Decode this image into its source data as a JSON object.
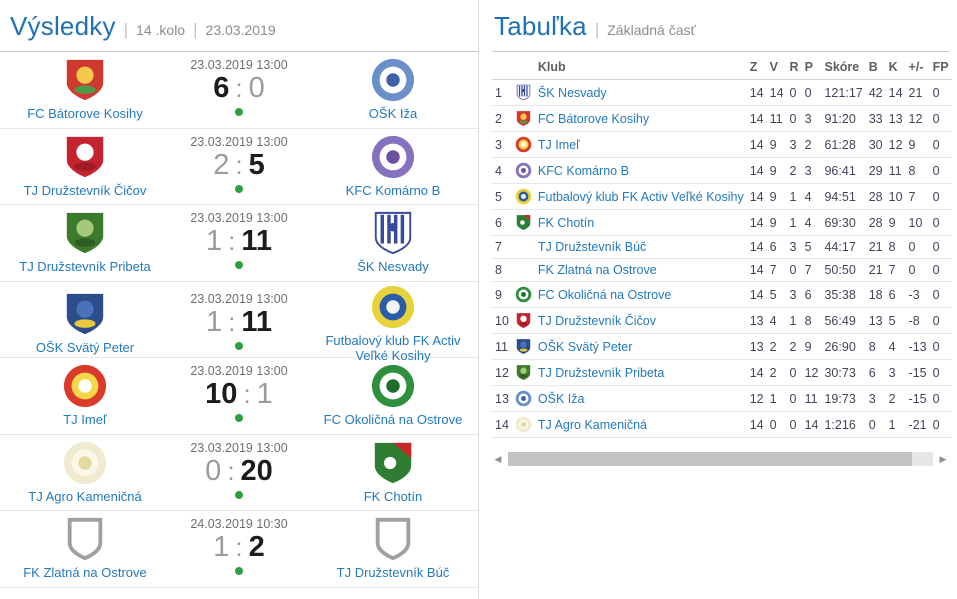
{
  "results": {
    "title": "Výsledky",
    "round": "14 .kolo",
    "date": "23.03.2019",
    "separator": "|",
    "score_separator": ":",
    "matches": [
      {
        "datetime": "23.03.2019 13:00",
        "home": {
          "name": "FC Bátorove Kosihy",
          "logo": "batorove-kosihy"
        },
        "away": {
          "name": "OŠK Iža",
          "logo": "iza"
        },
        "score": {
          "home": "6",
          "away": "0"
        }
      },
      {
        "datetime": "23.03.2019 13:00",
        "home": {
          "name": "TJ Družstevník Čičov",
          "logo": "cicov"
        },
        "away": {
          "name": "KFC Komárno B",
          "logo": "komarno-b"
        },
        "score": {
          "home": "2",
          "away": "5"
        }
      },
      {
        "datetime": "23.03.2019 13:00",
        "home": {
          "name": "TJ Družstevník Pribeta",
          "logo": "pribeta"
        },
        "away": {
          "name": "ŠK Nesvady",
          "logo": "nesvady"
        },
        "score": {
          "home": "1",
          "away": "11"
        }
      },
      {
        "datetime": "23.03.2019 13:00",
        "home": {
          "name": "OŠK Svätý Peter",
          "logo": "svaty-peter"
        },
        "away": {
          "name": "Futbalový klub FK Activ Veľké Kosihy",
          "logo": "activ-velke-kosihy"
        },
        "score": {
          "home": "1",
          "away": "11"
        }
      },
      {
        "datetime": "23.03.2019 13:00",
        "home": {
          "name": "TJ Imeľ",
          "logo": "imel"
        },
        "away": {
          "name": "FC Okoličná na Ostrove",
          "logo": "okolicna"
        },
        "score": {
          "home": "10",
          "away": "1"
        }
      },
      {
        "datetime": "23.03.2019 13:00",
        "home": {
          "name": "TJ Agro Kameničná",
          "logo": "agro-kamenicna"
        },
        "away": {
          "name": "FK Chotín",
          "logo": "chotin"
        },
        "score": {
          "home": "0",
          "away": "20"
        }
      },
      {
        "datetime": "24.03.2019 10:30",
        "home": {
          "name": "FK Zlatná na Ostrove",
          "logo": "placeholder-shield"
        },
        "away": {
          "name": "TJ Družstevník Búč",
          "logo": "placeholder-shield"
        },
        "score": {
          "home": "1",
          "away": "2"
        }
      }
    ]
  },
  "table": {
    "title": "Tabuľka",
    "subtitle": "Základná časť",
    "separator": "|",
    "columns": [
      "Klub",
      "Z",
      "V",
      "R",
      "P",
      "Skóre",
      "B",
      "K",
      "+/-",
      "FP"
    ],
    "rows": [
      {
        "pos": "1",
        "club": "ŠK Nesvady",
        "logo": "nesvady",
        "z": "14",
        "v": "14",
        "r": "0",
        "p": "0",
        "skore": "121:17",
        "b": "42",
        "k": "14",
        "pm": "21",
        "fp": "0"
      },
      {
        "pos": "2",
        "club": "FC Bátorove Kosihy",
        "logo": "batorove-kosihy",
        "z": "14",
        "v": "11",
        "r": "0",
        "p": "3",
        "skore": "91:20",
        "b": "33",
        "k": "13",
        "pm": "12",
        "fp": "0"
      },
      {
        "pos": "3",
        "club": "TJ Imeľ",
        "logo": "imel",
        "z": "14",
        "v": "9",
        "r": "3",
        "p": "2",
        "skore": "61:28",
        "b": "30",
        "k": "12",
        "pm": "9",
        "fp": "0"
      },
      {
        "pos": "4",
        "club": "KFC Komárno B",
        "logo": "komarno-b",
        "z": "14",
        "v": "9",
        "r": "2",
        "p": "3",
        "skore": "96:41",
        "b": "29",
        "k": "11",
        "pm": "8",
        "fp": "0"
      },
      {
        "pos": "5",
        "club": "Futbalový klub FK Activ Veľké Kosihy",
        "logo": "activ-velke-kosihy",
        "z": "14",
        "v": "9",
        "r": "1",
        "p": "4",
        "skore": "94:51",
        "b": "28",
        "k": "10",
        "pm": "7",
        "fp": "0"
      },
      {
        "pos": "6",
        "club": "FK Chotín",
        "logo": "chotin",
        "z": "14",
        "v": "9",
        "r": "1",
        "p": "4",
        "skore": "69:30",
        "b": "28",
        "k": "9",
        "pm": "10",
        "fp": "0"
      },
      {
        "pos": "7",
        "club": "TJ Družstevník Búč",
        "logo": "",
        "z": "14",
        "v": "6",
        "r": "3",
        "p": "5",
        "skore": "44:17",
        "b": "21",
        "k": "8",
        "pm": "0",
        "fp": "0"
      },
      {
        "pos": "8",
        "club": "FK Zlatná na Ostrove",
        "logo": "",
        "z": "14",
        "v": "7",
        "r": "0",
        "p": "7",
        "skore": "50:50",
        "b": "21",
        "k": "7",
        "pm": "0",
        "fp": "0"
      },
      {
        "pos": "9",
        "club": "FC Okoličná na Ostrove",
        "logo": "okolicna",
        "z": "14",
        "v": "5",
        "r": "3",
        "p": "6",
        "skore": "35:38",
        "b": "18",
        "k": "6",
        "pm": "-3",
        "fp": "0"
      },
      {
        "pos": "10",
        "club": "TJ Družstevník Čičov",
        "logo": "cicov",
        "z": "13",
        "v": "4",
        "r": "1",
        "p": "8",
        "skore": "56:49",
        "b": "13",
        "k": "5",
        "pm": "-8",
        "fp": "0"
      },
      {
        "pos": "11",
        "club": "OŠK Svätý Peter",
        "logo": "svaty-peter",
        "z": "13",
        "v": "2",
        "r": "2",
        "p": "9",
        "skore": "26:90",
        "b": "8",
        "k": "4",
        "pm": "-13",
        "fp": "0"
      },
      {
        "pos": "12",
        "club": "TJ Družstevník Pribeta",
        "logo": "pribeta",
        "z": "14",
        "v": "2",
        "r": "0",
        "p": "12",
        "skore": "30:73",
        "b": "6",
        "k": "3",
        "pm": "-15",
        "fp": "0"
      },
      {
        "pos": "13",
        "club": "OŠK Iža",
        "logo": "iza",
        "z": "12",
        "v": "1",
        "r": "0",
        "p": "11",
        "skore": "19:73",
        "b": "3",
        "k": "2",
        "pm": "-15",
        "fp": "0"
      },
      {
        "pos": "14",
        "club": "TJ Agro Kameničná",
        "logo": "agro-kamenicna",
        "z": "14",
        "v": "0",
        "r": "0",
        "p": "14",
        "skore": "1:216",
        "b": "0",
        "k": "1",
        "pm": "-21",
        "fp": "0"
      }
    ],
    "scrollbar": {
      "left_arrow": "◀",
      "right_arrow": "▶"
    }
  },
  "logos": {
    "batorove-kosihy": {
      "shape": "shield",
      "colors": [
        "#d03a2e",
        "#f2c94c",
        "#4c9a48"
      ]
    },
    "iza": {
      "shape": "circle",
      "colors": [
        "#6b8fc9",
        "#ffffff",
        "#3f5fa8"
      ]
    },
    "cicov": {
      "shape": "shield",
      "colors": [
        "#c32430",
        "#ffffff",
        "#9e1c26"
      ]
    },
    "komarno-b": {
      "shape": "circle",
      "colors": [
        "#8571bd",
        "#ffffff",
        "#6a4fa3"
      ]
    },
    "pribeta": {
      "shape": "shield",
      "colors": [
        "#3c7a2e",
        "#a6c87a",
        "#2c5e22"
      ]
    },
    "nesvady": {
      "shape": "stripes",
      "colors": [
        "#ffffff",
        "#39499c",
        "#39499c"
      ]
    },
    "svaty-peter": {
      "shape": "shield",
      "colors": [
        "#2b4d8c",
        "#4a72b8",
        "#e8c83c"
      ]
    },
    "activ-velke-kosihy": {
      "shape": "circle",
      "colors": [
        "#e8d23c",
        "#2b5ca8",
        "#f5f5f5"
      ]
    },
    "imel": {
      "shape": "circle",
      "colors": [
        "#d93a2b",
        "#f5d54a",
        "#ffffff"
      ]
    },
    "okolicna": {
      "shape": "circle",
      "colors": [
        "#2e8f3c",
        "#ffffff",
        "#1d6e2c"
      ]
    },
    "agro-kamenicna": {
      "shape": "circle",
      "colors": [
        "#f0ead0",
        "#fbf8ea",
        "#e3da9f"
      ]
    },
    "chotin": {
      "shape": "shield-diag",
      "colors": [
        "#2e7d32",
        "#c62828",
        "#ffffff"
      ]
    },
    "placeholder-shield": {
      "shape": "outline",
      "colors": [
        "#a0a0a0"
      ]
    }
  },
  "ui_colors": {
    "accent_blue": "#2071b5",
    "link_blue": "#2379bd",
    "muted_gray": "#8c8c8c",
    "winner_text": "#1c1c1c",
    "loser_text": "#9b9b9b",
    "played_dot_green": "#2f9e3f",
    "table_number_text": "#4a3f5a"
  }
}
